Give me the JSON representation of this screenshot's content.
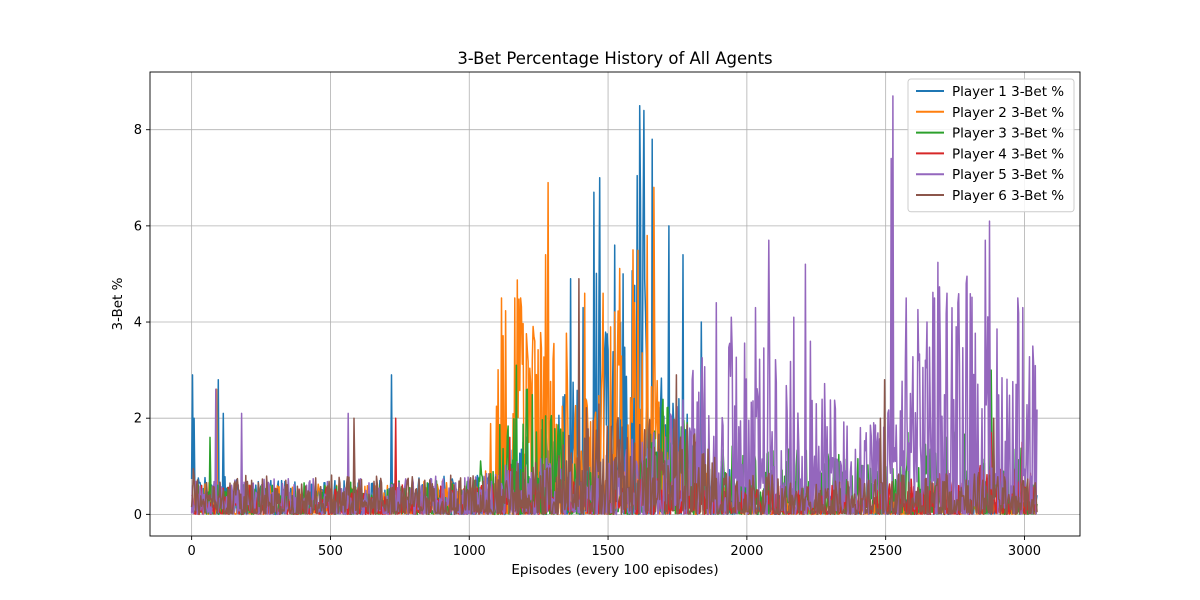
{
  "chart_data": {
    "type": "line",
    "title": "3-Bet Percentage History of All Agents",
    "xlabel": "Episodes (every 100 episodes)",
    "ylabel": "3-Bet %",
    "xlim": [
      -150,
      3200
    ],
    "ylim": [
      -0.45,
      9.2
    ],
    "x_ticks": [
      0,
      500,
      1000,
      1500,
      2000,
      2500,
      3000
    ],
    "y_ticks": [
      0,
      2,
      4,
      6,
      8
    ],
    "grid": true,
    "legend_position": "top-right",
    "x_range": [
      0,
      3045
    ],
    "series": [
      {
        "name": "Player 1 3-Bet %",
        "color": "#1f77b4",
        "noise": 0.9,
        "profile": [
          [
            0,
            0.45
          ],
          [
            300,
            0.35
          ],
          [
            700,
            0.35
          ],
          [
            1000,
            0.45
          ],
          [
            1100,
            0.55
          ],
          [
            1300,
            1.0
          ],
          [
            1400,
            1.8
          ],
          [
            1450,
            3.2
          ],
          [
            1500,
            2.2
          ],
          [
            1550,
            2.0
          ],
          [
            1600,
            3.5
          ],
          [
            1650,
            3.0
          ],
          [
            1700,
            1.6
          ],
          [
            1800,
            1.0
          ],
          [
            2000,
            0.25
          ],
          [
            2500,
            0.2
          ],
          [
            3045,
            0.2
          ]
        ],
        "peaks": [
          [
            2,
            2.9
          ],
          [
            8,
            2.0
          ],
          [
            95,
            2.8
          ],
          [
            115,
            2.1
          ],
          [
            720,
            2.9
          ],
          [
            1365,
            4.9
          ],
          [
            1410,
            4.3
          ],
          [
            1450,
            6.7
          ],
          [
            1470,
            7.0
          ],
          [
            1525,
            5.6
          ],
          [
            1555,
            5.0
          ],
          [
            1615,
            8.5
          ],
          [
            1630,
            8.4
          ],
          [
            1660,
            7.8
          ],
          [
            1720,
            6.0
          ],
          [
            1770,
            5.4
          ],
          [
            1835,
            4.0
          ]
        ]
      },
      {
        "name": "Player 2 3-Bet %",
        "color": "#ff7f0e",
        "noise": 0.9,
        "profile": [
          [
            0,
            0.35
          ],
          [
            700,
            0.3
          ],
          [
            1050,
            0.4
          ],
          [
            1100,
            1.5
          ],
          [
            1150,
            2.5
          ],
          [
            1250,
            2.2
          ],
          [
            1300,
            2.0
          ],
          [
            1400,
            1.8
          ],
          [
            1450,
            2.5
          ],
          [
            1550,
            2.5
          ],
          [
            1600,
            3.0
          ],
          [
            1650,
            2.5
          ],
          [
            1700,
            1.2
          ],
          [
            1800,
            0.5
          ],
          [
            2000,
            0.2
          ],
          [
            3045,
            0.15
          ]
        ],
        "peaks": [
          [
            90,
            2.6
          ],
          [
            1115,
            4.5
          ],
          [
            1165,
            4.5
          ],
          [
            1185,
            4.5
          ],
          [
            1285,
            6.9
          ],
          [
            1275,
            5.4
          ],
          [
            1415,
            4.6
          ],
          [
            1590,
            5.5
          ],
          [
            1640,
            5.8
          ],
          [
            1665,
            6.8
          ]
        ]
      },
      {
        "name": "Player 3 3-Bet %",
        "color": "#2ca02c",
        "noise": 0.9,
        "profile": [
          [
            0,
            0.3
          ],
          [
            1000,
            0.35
          ],
          [
            1100,
            0.9
          ],
          [
            1200,
            1.3
          ],
          [
            1300,
            1.0
          ],
          [
            1400,
            0.6
          ],
          [
            1500,
            0.3
          ],
          [
            1600,
            0.6
          ],
          [
            1700,
            1.2
          ],
          [
            1800,
            1.0
          ],
          [
            2000,
            0.6
          ],
          [
            2200,
            0.7
          ],
          [
            2500,
            0.5
          ],
          [
            2700,
            0.9
          ],
          [
            2900,
            0.8
          ],
          [
            3045,
            0.7
          ]
        ],
        "peaks": [
          [
            65,
            1.6
          ],
          [
            1170,
            3.1
          ],
          [
            1210,
            2.6
          ],
          [
            1840,
            2.8
          ],
          [
            2880,
            3.0
          ],
          [
            2580,
            1.7
          ],
          [
            2720,
            1.6
          ]
        ]
      },
      {
        "name": "Player 4 3-Bet %",
        "color": "#d62728",
        "noise": 0.9,
        "profile": [
          [
            0,
            0.3
          ],
          [
            1000,
            0.3
          ],
          [
            1500,
            0.4
          ],
          [
            2000,
            0.3
          ],
          [
            2500,
            0.3
          ],
          [
            2800,
            0.5
          ],
          [
            3045,
            0.5
          ]
        ],
        "peaks": [
          [
            735,
            2.0
          ],
          [
            1145,
            1.6
          ],
          [
            1815,
            1.5
          ],
          [
            2880,
            1.7
          ],
          [
            2990,
            1.5
          ]
        ]
      },
      {
        "name": "Player 5 3-Bet %",
        "color": "#9467bd",
        "noise": 0.9,
        "profile": [
          [
            0,
            0.35
          ],
          [
            1000,
            0.4
          ],
          [
            1200,
            0.6
          ],
          [
            1500,
            0.6
          ],
          [
            1700,
            1.0
          ],
          [
            1800,
            1.6
          ],
          [
            2000,
            1.8
          ],
          [
            2200,
            1.6
          ],
          [
            2400,
            1.0
          ],
          [
            2500,
            1.0
          ],
          [
            2600,
            2.0
          ],
          [
            2700,
            2.8
          ],
          [
            2800,
            2.5
          ],
          [
            2900,
            2.0
          ],
          [
            3000,
            2.3
          ],
          [
            3045,
            1.8
          ]
        ],
        "peaks": [
          [
            88,
            2.6
          ],
          [
            180,
            2.1
          ],
          [
            565,
            2.1
          ],
          [
            1890,
            4.4
          ],
          [
            1945,
            4.1
          ],
          [
            2030,
            4.3
          ],
          [
            2080,
            5.7
          ],
          [
            2170,
            4.1
          ],
          [
            2210,
            5.2
          ],
          [
            2230,
            3.6
          ],
          [
            2525,
            8.7
          ],
          [
            2520,
            7.4
          ],
          [
            2575,
            4.5
          ],
          [
            2650,
            4.0
          ],
          [
            2675,
            4.5
          ],
          [
            2720,
            4.6
          ],
          [
            2755,
            3.9
          ],
          [
            2790,
            4.8
          ],
          [
            2860,
            5.7
          ],
          [
            2875,
            6.1
          ],
          [
            2975,
            4.5
          ],
          [
            2995,
            4.3
          ],
          [
            3030,
            3.5
          ]
        ]
      },
      {
        "name": "Player 6 3-Bet %",
        "color": "#8c564b",
        "noise": 0.9,
        "profile": [
          [
            0,
            0.4
          ],
          [
            1000,
            0.4
          ],
          [
            1300,
            0.6
          ],
          [
            1450,
            1.2
          ],
          [
            1600,
            0.9
          ],
          [
            1750,
            1.1
          ],
          [
            1900,
            0.6
          ],
          [
            2200,
            0.3
          ],
          [
            2500,
            0.4
          ],
          [
            2700,
            0.5
          ],
          [
            3045,
            0.35
          ]
        ],
        "peaks": [
          [
            5,
            0.95
          ],
          [
            585,
            2.0
          ],
          [
            1395,
            4.9
          ],
          [
            1745,
            2.9
          ],
          [
            2495,
            2.8
          ],
          [
            2480,
            2.0
          ],
          [
            2890,
            2.0
          ]
        ]
      }
    ]
  }
}
